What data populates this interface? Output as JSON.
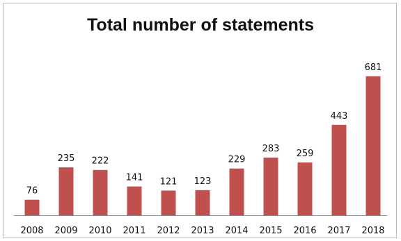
{
  "chart_data": {
    "type": "bar",
    "title": "Total number of statements",
    "categories": [
      "2008",
      "2009",
      "2010",
      "2011",
      "2012",
      "2013",
      "2014",
      "2015",
      "2016",
      "2017",
      "2018"
    ],
    "values": [
      76,
      235,
      222,
      141,
      121,
      123,
      229,
      283,
      259,
      443,
      681
    ],
    "xlabel": "",
    "ylabel": "",
    "ylim": [
      0,
      700
    ],
    "grid": false,
    "legend": "none",
    "bar_color": "#c0504d",
    "axis_color": "#8c8c8c"
  }
}
